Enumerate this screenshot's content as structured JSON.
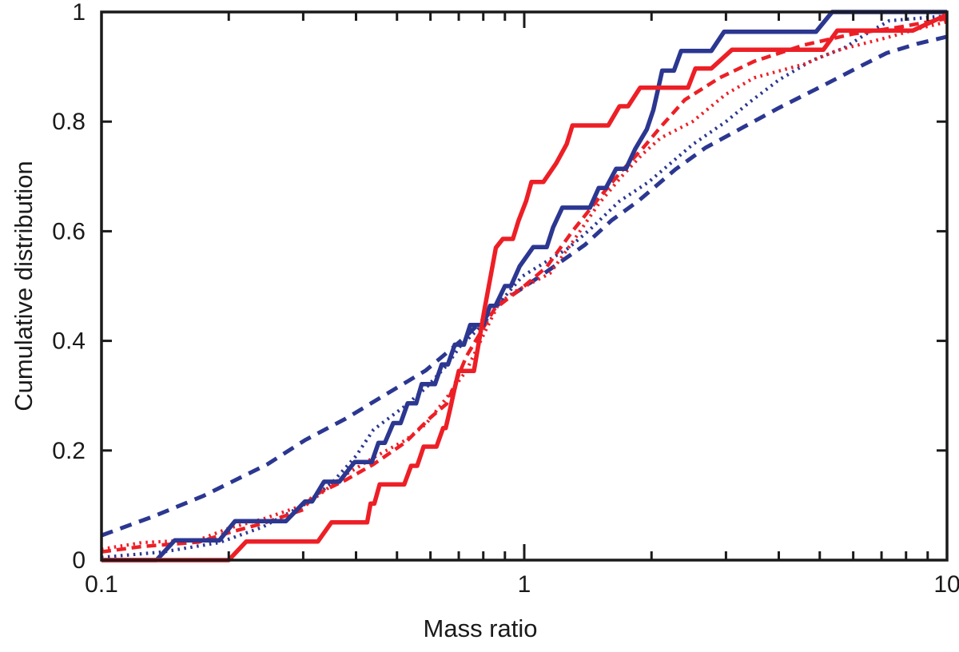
{
  "chart_data": {
    "type": "line",
    "title": "",
    "xlabel": "Mass ratio",
    "ylabel": "Cumulative distribution",
    "x_scale": "log",
    "xlim": [
      0.1,
      10
    ],
    "ylim": [
      0,
      1
    ],
    "grid": false,
    "legend": null,
    "background": "#ffffff",
    "axis_color": "#1a1a1a",
    "x_ticks_major": [
      {
        "v": 0.1,
        "label": "0.1"
      },
      {
        "v": 1,
        "label": "1"
      },
      {
        "v": 10,
        "label": "10"
      }
    ],
    "x_ticks_minor": [
      0.2,
      0.3,
      0.4,
      0.5,
      0.6,
      0.7,
      0.8,
      0.9,
      2,
      3,
      4,
      5,
      6,
      7,
      8,
      9
    ],
    "y_ticks": [
      {
        "v": 0,
        "label": "0"
      },
      {
        "v": 0.2,
        "label": "0.2"
      },
      {
        "v": 0.4,
        "label": "0.4"
      },
      {
        "v": 0.6,
        "label": "0.6"
      },
      {
        "v": 0.8,
        "label": "0.8"
      },
      {
        "v": 1,
        "label": "1"
      }
    ],
    "colors": {
      "blue": "#2b3790",
      "red": "#ed1f26"
    },
    "series": [
      {
        "name": "blue-dashed",
        "color": "#2b3790",
        "style": "dashed",
        "width": 5,
        "dash": "15 10",
        "points": [
          [
            0.1,
            0.045
          ],
          [
            0.133,
            0.08
          ],
          [
            0.174,
            0.117
          ],
          [
            0.247,
            0.175
          ],
          [
            0.303,
            0.219
          ],
          [
            0.378,
            0.258
          ],
          [
            0.47,
            0.302
          ],
          [
            0.585,
            0.346
          ],
          [
            0.66,
            0.38
          ],
          [
            0.73,
            0.409
          ],
          [
            0.87,
            0.467
          ],
          [
            1.1,
            0.52
          ],
          [
            1.39,
            0.575
          ],
          [
            1.61,
            0.62
          ],
          [
            1.86,
            0.655
          ],
          [
            2.28,
            0.713
          ],
          [
            2.68,
            0.752
          ],
          [
            3.3,
            0.79
          ],
          [
            4.0,
            0.825
          ],
          [
            5.1,
            0.866
          ],
          [
            6.2,
            0.9
          ],
          [
            7.2,
            0.925
          ],
          [
            8.5,
            0.942
          ],
          [
            10,
            0.955
          ]
        ]
      },
      {
        "name": "blue-dotted",
        "color": "#2b3790",
        "style": "dotted",
        "width": 4.2,
        "dash": "2.5 5.5",
        "points": [
          [
            0.1,
            0.005
          ],
          [
            0.14,
            0.015
          ],
          [
            0.19,
            0.032
          ],
          [
            0.24,
            0.06
          ],
          [
            0.3,
            0.1
          ],
          [
            0.35,
            0.14
          ],
          [
            0.4,
            0.19
          ],
          [
            0.44,
            0.238
          ],
          [
            0.52,
            0.28
          ],
          [
            0.585,
            0.314
          ],
          [
            0.655,
            0.355
          ],
          [
            0.705,
            0.39
          ],
          [
            0.8,
            0.43
          ],
          [
            0.87,
            0.468
          ],
          [
            0.99,
            0.518
          ],
          [
            1.27,
            0.569
          ],
          [
            1.43,
            0.603
          ],
          [
            1.68,
            0.655
          ],
          [
            1.97,
            0.69
          ],
          [
            2.5,
            0.758
          ],
          [
            3.0,
            0.8
          ],
          [
            3.42,
            0.836
          ],
          [
            4.0,
            0.876
          ],
          [
            4.8,
            0.912
          ],
          [
            5.7,
            0.934
          ],
          [
            6.5,
            0.962
          ],
          [
            7.3,
            0.984
          ],
          [
            10,
            0.993
          ]
        ]
      },
      {
        "name": "red-dotted",
        "color": "#ed1f26",
        "style": "dotted",
        "width": 4.2,
        "dash": "2.5 5.5",
        "points": [
          [
            0.1,
            0.02
          ],
          [
            0.125,
            0.032
          ],
          [
            0.17,
            0.037
          ],
          [
            0.2,
            0.058
          ],
          [
            0.243,
            0.076
          ],
          [
            0.3,
            0.1
          ],
          [
            0.316,
            0.11
          ],
          [
            0.378,
            0.156
          ],
          [
            0.44,
            0.187
          ],
          [
            0.524,
            0.219
          ],
          [
            0.585,
            0.248
          ],
          [
            0.655,
            0.296
          ],
          [
            0.73,
            0.346
          ],
          [
            0.8,
            0.41
          ],
          [
            0.87,
            0.468
          ],
          [
            0.95,
            0.49
          ],
          [
            1.15,
            0.523
          ],
          [
            1.3,
            0.58
          ],
          [
            1.5,
            0.65
          ],
          [
            1.7,
            0.7
          ],
          [
            1.9,
            0.74
          ],
          [
            2.1,
            0.77
          ],
          [
            2.5,
            0.8
          ],
          [
            3.0,
            0.85
          ],
          [
            3.5,
            0.88
          ],
          [
            4.6,
            0.905
          ],
          [
            5.5,
            0.93
          ],
          [
            7.2,
            0.953
          ],
          [
            8.6,
            0.97
          ],
          [
            10,
            0.982
          ]
        ]
      },
      {
        "name": "red-dashed",
        "color": "#ed1f26",
        "style": "dashed",
        "width": 4.5,
        "dash": "12 7",
        "points": [
          [
            0.1,
            0.015
          ],
          [
            0.125,
            0.025
          ],
          [
            0.17,
            0.033
          ],
          [
            0.2,
            0.05
          ],
          [
            0.243,
            0.068
          ],
          [
            0.3,
            0.092
          ],
          [
            0.316,
            0.117
          ],
          [
            0.378,
            0.146
          ],
          [
            0.44,
            0.175
          ],
          [
            0.524,
            0.215
          ],
          [
            0.6,
            0.26
          ],
          [
            0.655,
            0.285
          ],
          [
            0.73,
            0.372
          ],
          [
            0.85,
            0.458
          ],
          [
            1.0,
            0.5
          ],
          [
            1.13,
            0.535
          ],
          [
            1.3,
            0.6
          ],
          [
            1.5,
            0.66
          ],
          [
            1.7,
            0.71
          ],
          [
            1.9,
            0.75
          ],
          [
            2.1,
            0.79
          ],
          [
            2.4,
            0.84
          ],
          [
            2.9,
            0.88
          ],
          [
            3.5,
            0.91
          ],
          [
            4.6,
            0.94
          ],
          [
            6.0,
            0.96
          ],
          [
            7.8,
            0.973
          ],
          [
            10,
            0.988
          ]
        ]
      },
      {
        "name": "blue-solid",
        "color": "#2b3790",
        "style": "solid",
        "width": 5.5,
        "dash": "",
        "points": [
          [
            0.1,
            0
          ],
          [
            0.135,
            0
          ],
          [
            0.149,
            0.036
          ],
          [
            0.19,
            0.036
          ],
          [
            0.207,
            0.071
          ],
          [
            0.273,
            0.071
          ],
          [
            0.303,
            0.107
          ],
          [
            0.315,
            0.107
          ],
          [
            0.336,
            0.143
          ],
          [
            0.365,
            0.143
          ],
          [
            0.397,
            0.179
          ],
          [
            0.436,
            0.179
          ],
          [
            0.452,
            0.214
          ],
          [
            0.468,
            0.214
          ],
          [
            0.49,
            0.25
          ],
          [
            0.51,
            0.25
          ],
          [
            0.53,
            0.286
          ],
          [
            0.555,
            0.286
          ],
          [
            0.572,
            0.321
          ],
          [
            0.615,
            0.321
          ],
          [
            0.638,
            0.357
          ],
          [
            0.66,
            0.357
          ],
          [
            0.685,
            0.393
          ],
          [
            0.72,
            0.393
          ],
          [
            0.745,
            0.429
          ],
          [
            0.8,
            0.429
          ],
          [
            0.83,
            0.464
          ],
          [
            0.855,
            0.464
          ],
          [
            0.9,
            0.5
          ],
          [
            0.93,
            0.5
          ],
          [
            0.975,
            0.536
          ],
          [
            1.05,
            0.571
          ],
          [
            1.13,
            0.571
          ],
          [
            1.17,
            0.607
          ],
          [
            1.23,
            0.643
          ],
          [
            1.43,
            0.643
          ],
          [
            1.5,
            0.679
          ],
          [
            1.56,
            0.679
          ],
          [
            1.65,
            0.714
          ],
          [
            1.74,
            0.714
          ],
          [
            1.83,
            0.75
          ],
          [
            1.95,
            0.786
          ],
          [
            2.02,
            0.821
          ],
          [
            2.07,
            0.857
          ],
          [
            2.12,
            0.893
          ],
          [
            2.26,
            0.893
          ],
          [
            2.35,
            0.929
          ],
          [
            2.77,
            0.929
          ],
          [
            2.97,
            0.964
          ],
          [
            4.9,
            0.964
          ],
          [
            5.35,
            1.0
          ],
          [
            10,
            1.0
          ]
        ]
      },
      {
        "name": "red-solid",
        "color": "#ed1f26",
        "style": "solid",
        "width": 5.5,
        "dash": "",
        "points": [
          [
            0.1,
            0
          ],
          [
            0.2,
            0
          ],
          [
            0.22,
            0.034
          ],
          [
            0.325,
            0.034
          ],
          [
            0.35,
            0.069
          ],
          [
            0.425,
            0.069
          ],
          [
            0.433,
            0.103
          ],
          [
            0.442,
            0.103
          ],
          [
            0.455,
            0.138
          ],
          [
            0.52,
            0.138
          ],
          [
            0.54,
            0.172
          ],
          [
            0.558,
            0.172
          ],
          [
            0.578,
            0.207
          ],
          [
            0.62,
            0.207
          ],
          [
            0.643,
            0.241
          ],
          [
            0.652,
            0.241
          ],
          [
            0.668,
            0.276
          ],
          [
            0.683,
            0.31
          ],
          [
            0.7,
            0.345
          ],
          [
            0.76,
            0.345
          ],
          [
            0.805,
            0.457
          ],
          [
            0.857,
            0.57
          ],
          [
            0.89,
            0.586
          ],
          [
            0.94,
            0.586
          ],
          [
            0.97,
            0.62
          ],
          [
            1.01,
            0.655
          ],
          [
            1.04,
            0.69
          ],
          [
            1.11,
            0.69
          ],
          [
            1.19,
            0.724
          ],
          [
            1.26,
            0.759
          ],
          [
            1.3,
            0.793
          ],
          [
            1.58,
            0.793
          ],
          [
            1.68,
            0.828
          ],
          [
            1.76,
            0.828
          ],
          [
            1.88,
            0.862
          ],
          [
            2.44,
            0.862
          ],
          [
            2.54,
            0.897
          ],
          [
            2.77,
            0.897
          ],
          [
            3.1,
            0.931
          ],
          [
            5.1,
            0.931
          ],
          [
            5.5,
            0.966
          ],
          [
            8.3,
            0.966
          ],
          [
            10,
            0.995
          ]
        ]
      }
    ]
  }
}
